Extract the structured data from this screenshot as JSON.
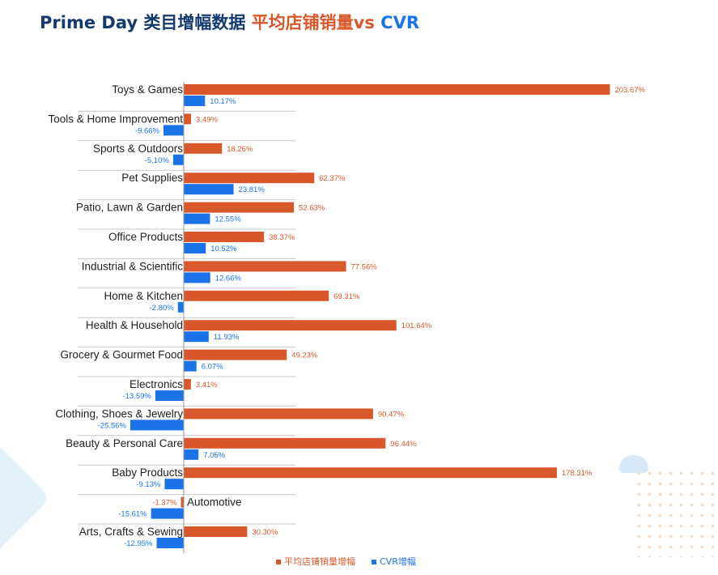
{
  "header": {
    "title_part1": "Prime Day 类目增幅数据 ",
    "title_part2": "平均店铺销量",
    "title_part3": "vs ",
    "title_part4": "CVR"
  },
  "colors": {
    "title_dark": "#133a6e",
    "series_sales": "#d9582b",
    "series_cvr": "#1a73e8",
    "axis": "#999999",
    "separator": "#c8c8c8"
  },
  "chart_data": {
    "type": "bar",
    "orientation": "horizontal",
    "categories": [
      "Toys & Games",
      "Tools & Home Improvement",
      "Sports & Outdoors",
      "Pet Supplies",
      "Patio, Lawn & Garden",
      "Office Products",
      "Industrial & Scientific",
      "Home & Kitchen",
      "Health & Household",
      "Grocery & Gourmet Food",
      "Electronics",
      "Clothing, Shoes & Jewelry",
      "Beauty & Personal Care",
      "Baby Products",
      "Automotive",
      "Arts, Crafts & Sewing"
    ],
    "series": [
      {
        "name": "平均店铺销量增幅",
        "color": "#d9582b",
        "values": [
          203.67,
          3.49,
          18.26,
          62.37,
          52.63,
          38.37,
          77.56,
          69.31,
          101.64,
          49.23,
          3.41,
          90.47,
          96.44,
          178.31,
          -1.37,
          30.3
        ],
        "labels": [
          "203.67%",
          "3.49%",
          "18.26%",
          "62.37%",
          "52.63%",
          "38.37%",
          "77.56%",
          "69.31%",
          "101.64%",
          "49.23%",
          "3.41%",
          "90.47%",
          "96.44%",
          "178.31%",
          "-1.37%",
          "30.30%"
        ]
      },
      {
        "name": "CVR增幅",
        "color": "#1a73e8",
        "values": [
          10.17,
          -9.66,
          -5.1,
          23.81,
          12.55,
          10.52,
          12.66,
          -2.8,
          11.93,
          6.07,
          -13.59,
          -25.56,
          7.05,
          -9.13,
          -15.61,
          -12.95
        ],
        "labels": [
          "10.17%",
          "-9.66%",
          "-5.10%",
          "23.81%",
          "12.55%",
          "10.52%",
          "12.66%",
          "-2.80%",
          "11.93%",
          "6.07%",
          "-13.59%",
          "-25.56%",
          "7.05%",
          "-9.13%",
          "-15.61%",
          "-12.95%"
        ]
      }
    ],
    "unit": "%",
    "legend_position": "bottom-center",
    "grid": false
  }
}
